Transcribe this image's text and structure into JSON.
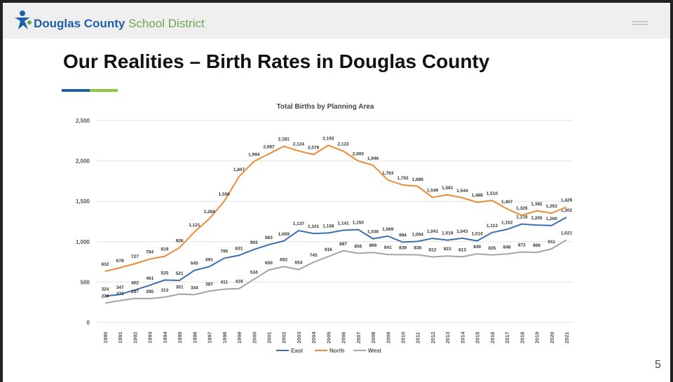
{
  "header": {
    "logo_bold": "Douglas County",
    "logo_light": "School District"
  },
  "slide": {
    "title": "Our Realities – Birth Rates in Douglas County",
    "page_number": "5"
  },
  "chart_data": {
    "type": "line",
    "title": "Total Births by Planning Area",
    "categories": [
      "1990",
      "1991",
      "1992",
      "1993",
      "1994",
      "1995",
      "1996",
      "1997",
      "1998",
      "1999",
      "2000",
      "2001",
      "2002",
      "2003",
      "2004",
      "2005",
      "2006",
      "2007",
      "2008",
      "2009",
      "2010",
      "2011",
      "2012",
      "2013",
      "2014",
      "2015",
      "2016",
      "2017",
      "2018",
      "2019",
      "2020",
      "2021"
    ],
    "ylim": [
      0,
      2500
    ],
    "yticks": [
      0,
      500,
      {
        "value": 1000,
        "label": "1,000"
      },
      {
        "value": 1500,
        "label": "1,500"
      },
      {
        "value": 2000,
        "label": "2,000"
      },
      {
        "value": 2500,
        "label": "2,500"
      }
    ],
    "grid": true,
    "legend": "bottom",
    "series": [
      {
        "name": "East",
        "color": "#3e6eb0",
        "values": [
          324,
          347,
          402,
          461,
          525,
          521,
          645,
          691,
          795,
          831,
          903,
          963,
          1009,
          1137,
          1101,
          1108,
          1141,
          1150,
          1036,
          1069,
          994,
          1004,
          1041,
          1019,
          1043,
          1010,
          1113,
          1152,
          1218,
          1205,
          1200,
          1302
        ],
        "value_labels": [
          "324",
          "347",
          "402",
          "461",
          "525",
          "521",
          "645",
          "691",
          "795",
          "831",
          "903",
          "963",
          "1,009",
          "1,137",
          "1,101",
          "1,108",
          "1,141",
          "1,150",
          "1,036",
          "1,069",
          "994",
          "1,004",
          "1,041",
          "1,019",
          "1,043",
          "1,010",
          "1,113",
          "1,152",
          "1,218",
          "1,205",
          "1,200",
          "1,302"
        ]
      },
      {
        "name": "North",
        "color": "#ed8b35",
        "values": [
          632,
          678,
          727,
          784,
          819,
          926,
          1121,
          1284,
          1500,
          1807,
          1994,
          2087,
          2181,
          2124,
          2079,
          2193,
          2122,
          2000,
          1946,
          1763,
          1702,
          1686,
          1549,
          1581,
          1544,
          1488,
          1510,
          1407,
          1326,
          1382,
          1353,
          1429
        ],
        "value_labels": [
          "632",
          "678",
          "727",
          "784",
          "819",
          "926",
          "1,121",
          "1,284",
          "1,500",
          "1,807",
          "1,994",
          "2,087",
          "2,181",
          "2,124",
          "2,079",
          "2,193",
          "2,122",
          "2,000",
          "1,946",
          "1,763",
          "1,702",
          "1,686",
          "1,549",
          "1,581",
          "1,544",
          "1,488",
          "1,510",
          "1,407",
          "1,326",
          "1,382",
          "1,353",
          "1,429"
        ]
      },
      {
        "name": "West",
        "color": "#a5a5a5",
        "values": [
          239,
          271,
          297,
          295,
          313,
          351,
          344,
          387,
          411,
          419,
          534,
          650,
          692,
          654,
          745,
          816,
          887,
          856,
          866,
          841,
          839,
          838,
          812,
          823,
          813,
          849,
          835,
          848,
          872,
          866,
          911,
          1021
        ],
        "value_labels": [
          "239",
          "271",
          "297",
          "295",
          "313",
          "351",
          "344",
          "387",
          "411",
          "419",
          "534",
          "650",
          "692",
          "654",
          "745",
          "816",
          "887",
          "856",
          "866",
          "841",
          "839",
          "838",
          "812",
          "823",
          "813",
          "849",
          "835",
          "848",
          "872",
          "866",
          "911",
          "1,021"
        ]
      }
    ]
  }
}
